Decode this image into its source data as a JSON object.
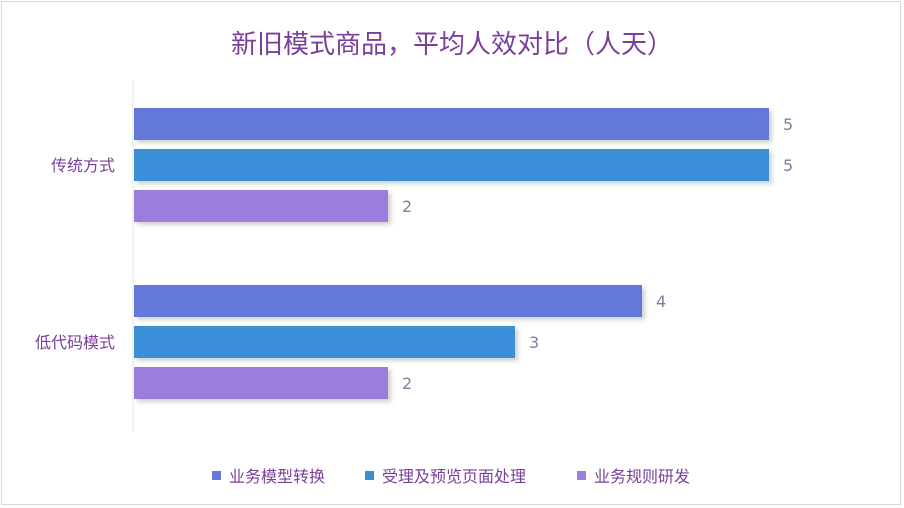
{
  "chart_data": {
    "type": "bar",
    "orientation": "horizontal",
    "title": "新旧模式商品，平均人效对比（人天）",
    "categories": [
      "传统方式",
      "低代码模式"
    ],
    "series": [
      {
        "name": "业务模型转换",
        "values": [
          5,
          4
        ],
        "color": "#6478d8"
      },
      {
        "name": "受理及预览页面处理",
        "values": [
          5,
          3
        ],
        "color": "#3a8ed8"
      },
      {
        "name": "业务规则研发",
        "values": [
          2,
          2
        ],
        "color": "#9b7ddc"
      }
    ],
    "xlim": [
      0,
      5
    ],
    "grid": false,
    "legend_position": "bottom",
    "data_labels": true
  }
}
